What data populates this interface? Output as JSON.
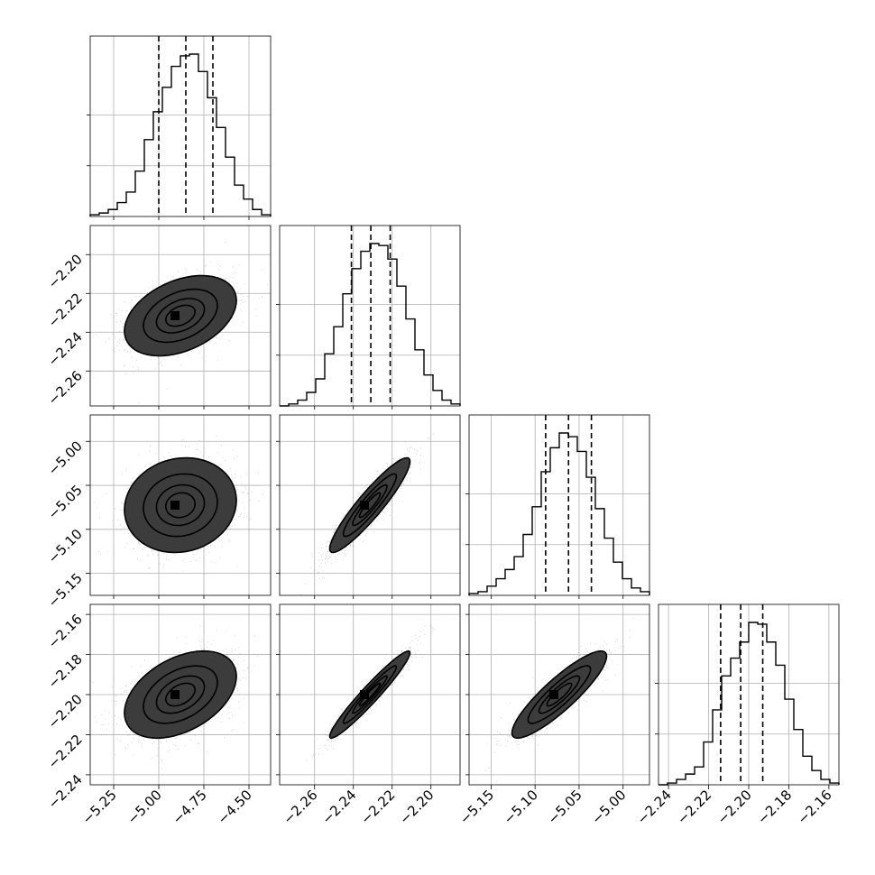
{
  "chart_data": {
    "type": "corner",
    "title": "",
    "grid": true,
    "variables": [
      {
        "range": [
          -5.38,
          -4.38
        ],
        "ticks": [
          -5.25,
          -5.0,
          -4.75,
          -4.5
        ],
        "tick_labels": [
          "−5.25",
          "−5.00",
          "−4.75",
          "−4.50"
        ],
        "quantiles": [
          -5.0,
          -4.85,
          -4.7
        ]
      },
      {
        "range": [
          -2.278,
          -2.185
        ],
        "ticks": [
          -2.26,
          -2.24,
          -2.22,
          -2.2
        ],
        "tick_labels": [
          "−2.26",
          "−2.24",
          "−2.22",
          "−2.20"
        ],
        "quantiles": [
          -2.241,
          -2.231,
          -2.221
        ]
      },
      {
        "range": [
          -5.175,
          -4.97
        ],
        "ticks": [
          -5.15,
          -5.1,
          -5.05,
          -5.0
        ],
        "tick_labels": [
          "−5.15",
          "−5.10",
          "−5.05",
          "−5.00"
        ],
        "quantiles": [
          -5.088,
          -5.062,
          -5.036
        ]
      },
      {
        "range": [
          -2.245,
          -2.155
        ],
        "ticks": [
          -2.24,
          -2.22,
          -2.2,
          -2.18,
          -2.16
        ],
        "tick_labels": [
          "−2.24",
          "−2.22",
          "−2.20",
          "−2.18",
          "−2.16"
        ],
        "quantiles": [
          -2.214,
          -2.204,
          -2.193
        ]
      }
    ],
    "histograms": [
      {
        "counts": [
          1,
          2,
          4,
          8,
          14,
          26,
          44,
          60,
          74,
          86,
          92,
          93,
          83,
          68,
          51,
          34,
          18,
          10,
          4,
          1
        ]
      },
      {
        "counts": [
          0,
          1,
          3,
          7,
          14,
          27,
          41,
          58,
          71,
          80,
          84,
          83,
          76,
          62,
          45,
          29,
          16,
          8,
          3,
          1
        ]
      },
      {
        "counts": [
          1,
          2,
          5,
          9,
          14,
          21,
          33,
          48,
          67,
          80,
          88,
          86,
          78,
          64,
          47,
          31,
          18,
          9,
          4,
          2
        ]
      },
      {
        "counts": [
          0,
          1,
          3,
          6,
          10,
          24,
          42,
          61,
          71,
          80,
          91,
          90,
          80,
          67,
          48,
          31,
          16,
          8,
          3,
          1
        ]
      }
    ],
    "pairs": [
      {
        "x_var": 0,
        "y_var": 1,
        "rho": 0.38
      },
      {
        "x_var": 0,
        "y_var": 2,
        "rho": 0.1
      },
      {
        "x_var": 1,
        "y_var": 2,
        "rho": 0.92
      },
      {
        "x_var": 0,
        "y_var": 3,
        "rho": 0.42
      },
      {
        "x_var": 1,
        "y_var": 3,
        "rho": 0.96
      },
      {
        "x_var": 2,
        "y_var": 3,
        "rho": 0.88
      }
    ],
    "contour_levels_sigma": [
      0.5,
      1.0,
      1.5,
      2.0
    ]
  }
}
